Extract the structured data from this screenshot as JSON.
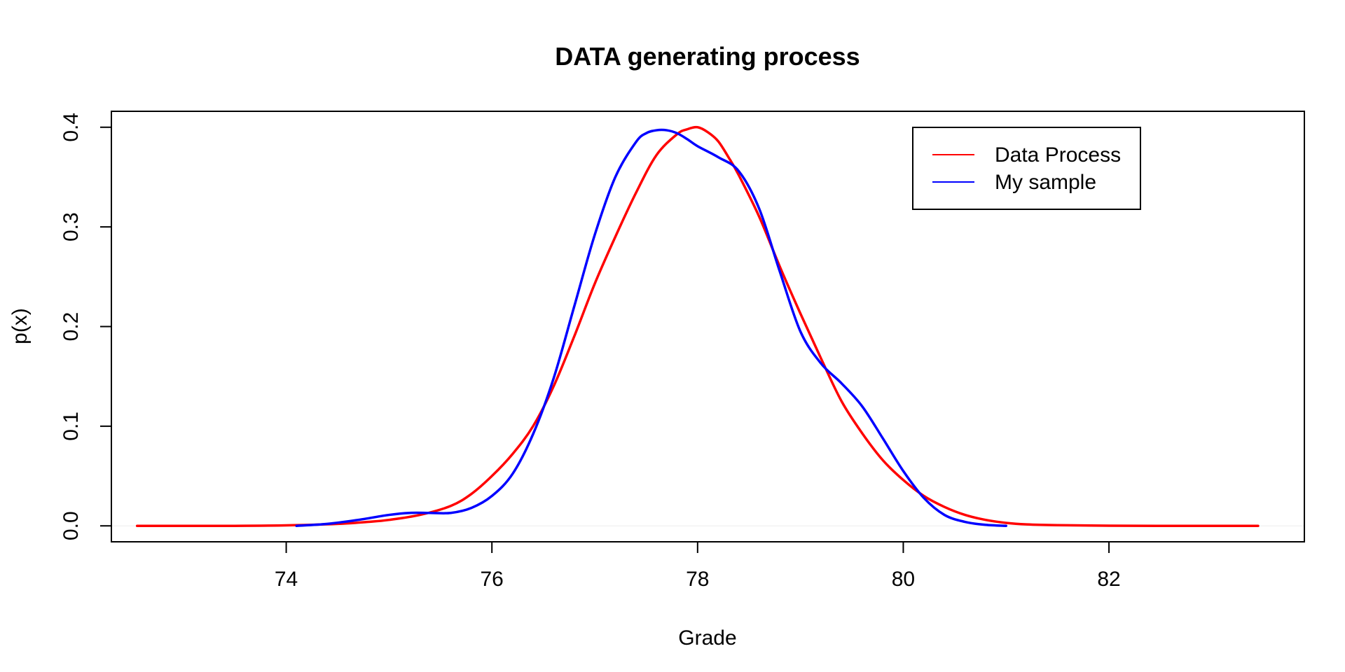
{
  "chart_data": {
    "type": "line",
    "title": "DATA generating process",
    "xlabel": "Grade",
    "ylabel": "p(x)",
    "xlim": [
      72.3,
      83.9
    ],
    "ylim": [
      -0.016,
      0.416
    ],
    "x_ticks": [
      74,
      76,
      78,
      80,
      82
    ],
    "x_tick_labels": [
      "74",
      "76",
      "78",
      "80",
      "82"
    ],
    "y_ticks": [
      0.0,
      0.1,
      0.2,
      0.3,
      0.4
    ],
    "y_tick_labels": [
      "0.0",
      "0.1",
      "0.2",
      "0.3",
      "0.4"
    ],
    "grid": false,
    "baseline_y": 0,
    "legend": {
      "position": "top-right",
      "entries": [
        {
          "name": "Data Process",
          "color": "#ff0000"
        },
        {
          "name": "My sample",
          "color": "#0000ff"
        }
      ]
    },
    "series": [
      {
        "name": "Data Process",
        "color": "#ff0000",
        "x": [
          72.55,
          73.0,
          73.5,
          74.0,
          74.5,
          74.8,
          75.0,
          75.3,
          75.6,
          75.8,
          76.0,
          76.2,
          76.4,
          76.6,
          76.8,
          77.0,
          77.2,
          77.4,
          77.6,
          77.8,
          77.9,
          78.0,
          78.1,
          78.2,
          78.3,
          78.4,
          78.6,
          78.8,
          79.0,
          79.2,
          79.4,
          79.6,
          79.8,
          80.0,
          80.2,
          80.4,
          80.6,
          80.8,
          81.0,
          81.2,
          81.5,
          82.0,
          82.5,
          83.0,
          83.45
        ],
        "values": [
          0.0,
          0.0,
          0.0,
          0.0005,
          0.002,
          0.004,
          0.006,
          0.011,
          0.02,
          0.032,
          0.05,
          0.072,
          0.1,
          0.14,
          0.19,
          0.243,
          0.29,
          0.334,
          0.372,
          0.393,
          0.398,
          0.4,
          0.395,
          0.386,
          0.37,
          0.352,
          0.31,
          0.26,
          0.213,
          0.168,
          0.125,
          0.093,
          0.066,
          0.046,
          0.03,
          0.019,
          0.011,
          0.006,
          0.003,
          0.0015,
          0.0007,
          0.0002,
          0.0,
          0.0,
          0.0
        ]
      },
      {
        "name": "My sample",
        "color": "#0000ff",
        "x": [
          74.1,
          74.4,
          74.7,
          75.0,
          75.2,
          75.4,
          75.6,
          75.8,
          76.0,
          76.2,
          76.4,
          76.6,
          76.8,
          77.0,
          77.2,
          77.4,
          77.5,
          77.6,
          77.7,
          77.8,
          77.9,
          78.0,
          78.2,
          78.4,
          78.6,
          78.8,
          79.0,
          79.2,
          79.4,
          79.6,
          79.8,
          80.0,
          80.2,
          80.4,
          80.6,
          80.8,
          81.0
        ],
        "values": [
          0.0,
          0.002,
          0.006,
          0.011,
          0.013,
          0.013,
          0.013,
          0.018,
          0.03,
          0.052,
          0.092,
          0.148,
          0.22,
          0.292,
          0.35,
          0.385,
          0.394,
          0.397,
          0.397,
          0.394,
          0.388,
          0.381,
          0.37,
          0.356,
          0.318,
          0.255,
          0.195,
          0.163,
          0.143,
          0.12,
          0.088,
          0.055,
          0.028,
          0.011,
          0.004,
          0.001,
          0.0
        ]
      }
    ]
  }
}
